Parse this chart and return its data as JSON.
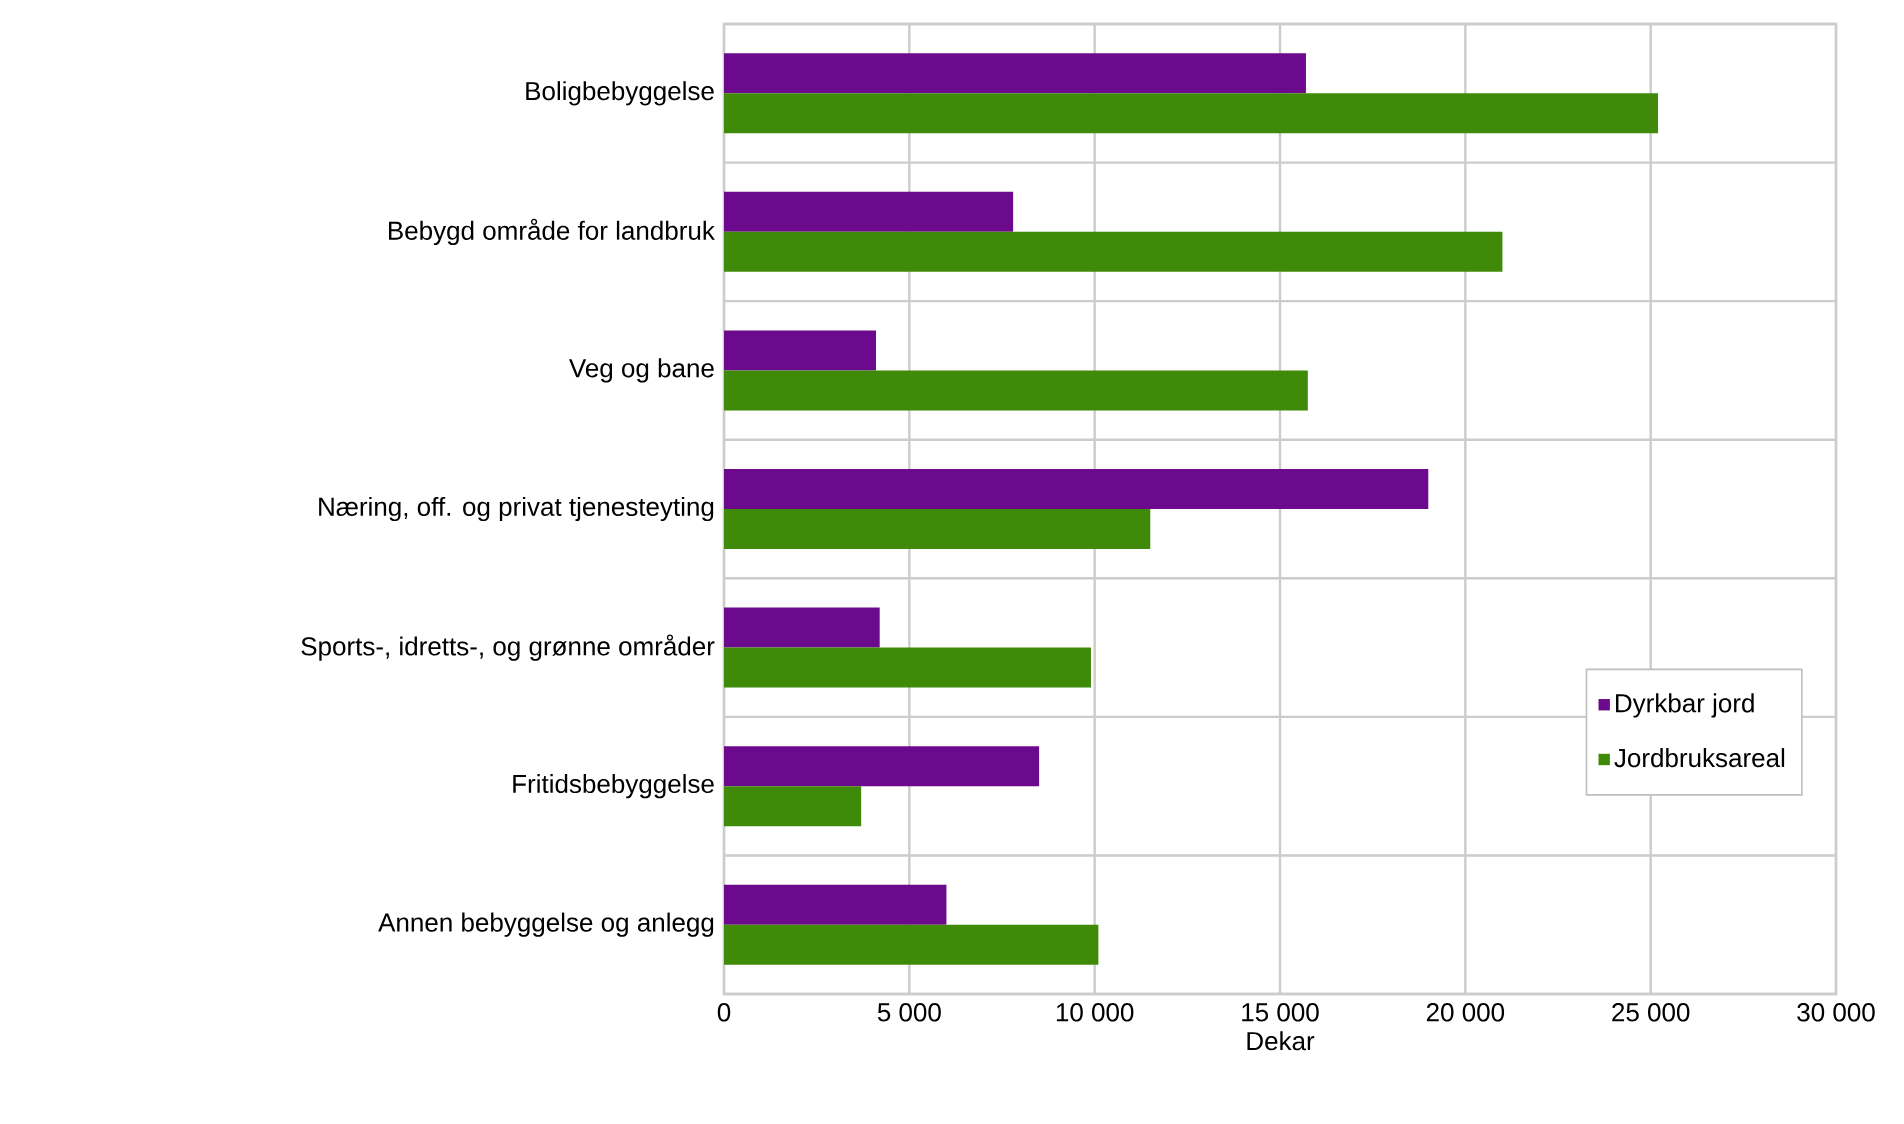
{
  "chart_data": {
    "type": "bar",
    "orientation": "horizontal",
    "xlabel": "Dekar",
    "categories": [
      "Boligbebyggelse",
      "Bebygd område for landbruk",
      "Veg og bane",
      "Næring, off. og privat tjenesteyting",
      "Sports-, idretts-, og grønne områder",
      "Fritidsbebyggelse",
      "Annen bebyggelse og anlegg"
    ],
    "series": [
      {
        "name": "Dyrkbar jord",
        "color": "#6b0a8c",
        "values": [
          15700,
          7800,
          4100,
          19000,
          4200,
          8500,
          6000
        ]
      },
      {
        "name": "Jordbruksareal",
        "color": "#3f8a08",
        "values": [
          25200,
          21000,
          15750,
          11500,
          9900,
          3700,
          10100
        ]
      }
    ],
    "xlim": [
      0,
      30000
    ],
    "xticks": [
      0,
      {
        "value": 5000,
        "label": "5 000"
      },
      {
        "value": 10000,
        "label": "10 000"
      },
      {
        "value": 15000,
        "label": "15 000"
      },
      {
        "value": 20000,
        "label": "20 000"
      },
      {
        "value": 25000,
        "label": "25 000"
      },
      {
        "value": 30000,
        "label": "30 000"
      }
    ],
    "grid": true,
    "legend": "bottom right"
  }
}
